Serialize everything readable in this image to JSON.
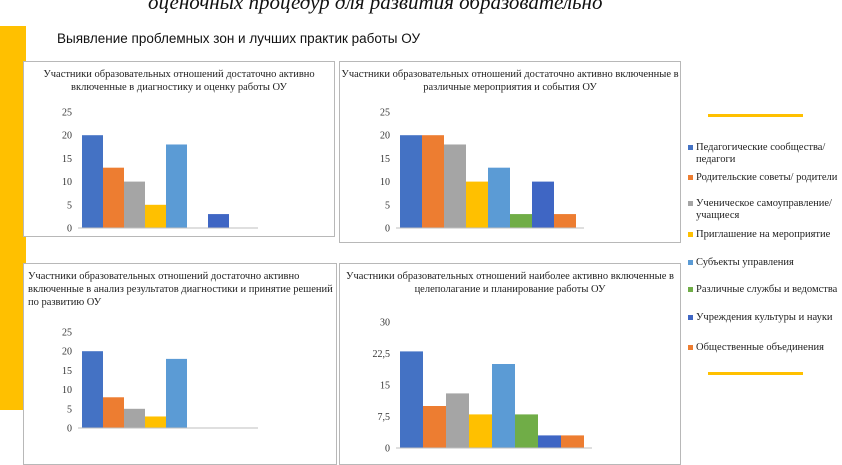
{
  "slide": {
    "top_text": "оценочных процедур для развития образовательно",
    "title": "Выявление проблемных зон и лучших практик работы ОУ"
  },
  "colors": {
    "accent": "#ffc000",
    "series": [
      "#4472c4",
      "#ed7d31",
      "#a5a5a5",
      "#ffc000",
      "#5b9bd5",
      "#70ad47",
      "#3f66c4",
      "#ed7d31"
    ]
  },
  "legend": {
    "items": [
      "Педагогические сообщества/ педагоги",
      "Родительские советы/ родители",
      "Ученическое самоуправление/ учащиеся",
      "Приглашение на мероприятие",
      "Субъекты управления",
      "Различные службы и ведомства",
      "Учреждения культуры и науки",
      "Общественные объединения"
    ]
  },
  "chart_data": [
    {
      "type": "bar",
      "title": "Участники образовательных отношений достаточно активно включенные в диагностику и оценку работы ОУ",
      "ylim": [
        0,
        25
      ],
      "yticks": [
        "25",
        "20",
        "15",
        "10",
        "5",
        "0"
      ],
      "values": [
        20,
        13,
        10,
        5,
        18,
        null,
        3,
        null
      ],
      "grid": false
    },
    {
      "type": "bar",
      "title": "Участники образовательных отношений достаточно активно включенные в различные мероприятия и события ОУ",
      "ylim": [
        0,
        25
      ],
      "yticks": [
        "25",
        "20",
        "15",
        "10",
        "5",
        "0"
      ],
      "values": [
        20,
        20,
        18,
        10,
        13,
        3,
        10,
        3
      ],
      "grid": false
    },
    {
      "type": "bar",
      "title": "Участники образовательных отношений достаточно активно включенные в анализ результатов диагностики и принятие решений по развитию ОУ",
      "ylim": [
        0,
        25
      ],
      "yticks": [
        "25",
        "20",
        "15",
        "10",
        "5",
        "0"
      ],
      "values": [
        20,
        8,
        5,
        3,
        18,
        null,
        null,
        null
      ],
      "grid": false
    },
    {
      "type": "bar",
      "title": "Участники образовательных отношений наиболее активно включенные в целеполагание и планирование работы ОУ",
      "ylim": [
        0,
        30
      ],
      "yticks": [
        "30",
        "22,5",
        "15",
        "7,5",
        "0"
      ],
      "values": [
        23,
        10,
        13,
        8,
        20,
        8,
        3,
        3
      ],
      "grid": false
    }
  ]
}
